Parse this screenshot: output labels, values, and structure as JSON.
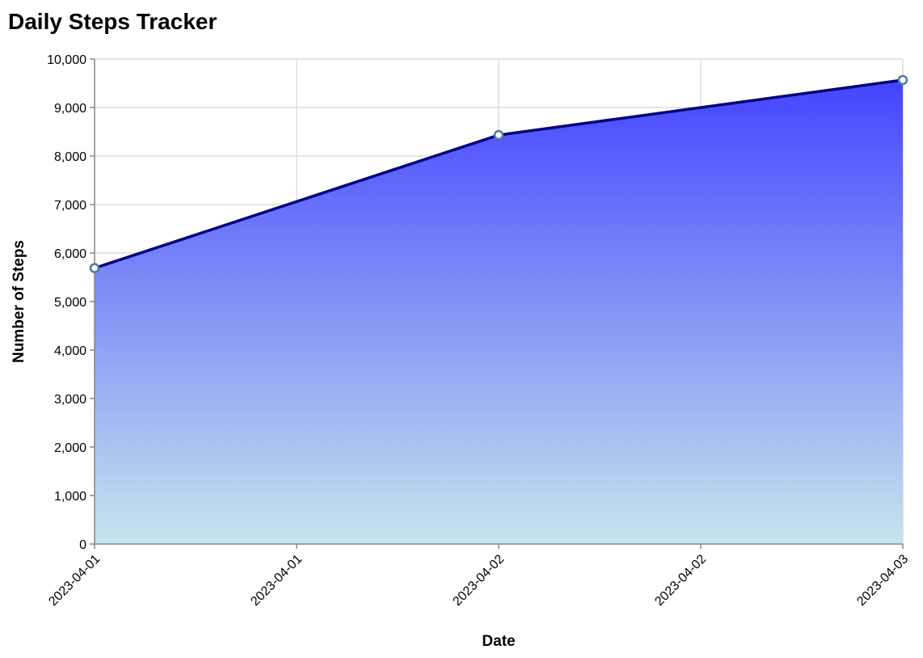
{
  "chart_data": {
    "type": "area",
    "title": "Daily Steps Tracker",
    "xlabel": "Date",
    "ylabel": "Number of Steps",
    "x": [
      "2023-04-01",
      "2023-04-02",
      "2023-04-03"
    ],
    "values": [
      5689,
      8432,
      9567
    ],
    "x_tick_labels": [
      "2023-04-01",
      "2023-04-01",
      "2023-04-02",
      "2023-04-02",
      "2023-04-03"
    ],
    "y_ticks": [
      0,
      1000,
      2000,
      3000,
      4000,
      5000,
      6000,
      7000,
      8000,
      9000,
      10000
    ],
    "ylim": [
      0,
      10000
    ],
    "grid": true,
    "legend": "none",
    "colors": {
      "line": "#00008b",
      "area_top": "#4444ff",
      "area_bottom": "#c6e5ec",
      "point_fill": "#ffffff",
      "point_stroke": "#4c78a8"
    }
  }
}
